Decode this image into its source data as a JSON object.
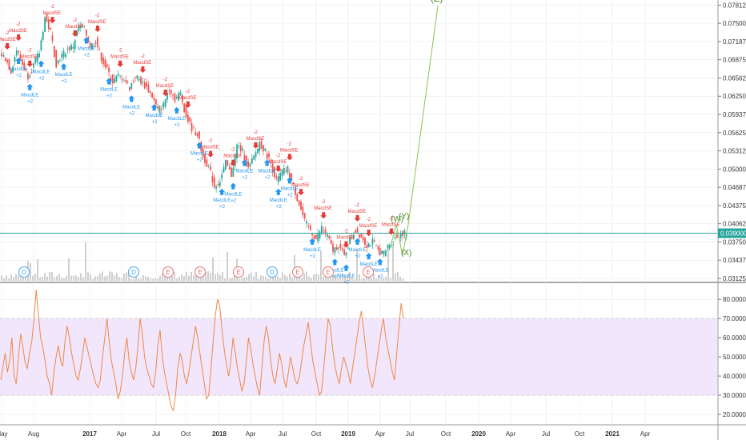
{
  "colors": {
    "candle_up": "#26a69a",
    "candle_down": "#ef5350",
    "volume": "#cfcfcf",
    "rsi_line": "#f0884a",
    "rsi_band": "#f1e6fb",
    "price_line": "#26a69a",
    "wave_line": "#8bc34a",
    "long_signal": "#2196f3",
    "short_signal": "#e53935",
    "axis_text": "#333333",
    "grid": "#e6e6e6",
    "earnings": "#e57373",
    "dividend": "#42a5f5"
  },
  "chart_data": [
    {
      "type": "candlestick",
      "y_ticks": [
        "0.078125",
        "0.075000",
        "0.071875",
        "0.068750",
        "0.065625",
        "0.062500",
        "0.059375",
        "0.056250",
        "0.053125",
        "0.050000",
        "0.046875",
        "0.043750",
        "0.040625",
        "0.037500",
        "0.034375",
        "0.031250"
      ],
      "ylim": [
        0.0307,
        0.079
      ],
      "current_price": "0.039000",
      "close_series_approx": [
        0.07,
        0.069,
        0.0668,
        0.0705,
        0.068,
        0.066,
        0.0678,
        0.07,
        0.076,
        0.0735,
        0.068,
        0.0695,
        0.0705,
        0.0712,
        0.0745,
        0.074,
        0.071,
        0.072,
        0.069,
        0.067,
        0.065,
        0.066,
        0.0655,
        0.064,
        0.066,
        0.065,
        0.064,
        0.0625,
        0.06,
        0.061,
        0.064,
        0.062,
        0.063,
        0.059,
        0.057,
        0.056,
        0.052,
        0.0505,
        0.047,
        0.048,
        0.051,
        0.049,
        0.054,
        0.053,
        0.05,
        0.052,
        0.0545,
        0.053,
        0.051,
        0.048,
        0.0495,
        0.05,
        0.047,
        0.044,
        0.041,
        0.0395,
        0.038,
        0.04,
        0.0385,
        0.036,
        0.037,
        0.035,
        0.038,
        0.0395,
        0.0385,
        0.037,
        0.0375,
        0.036,
        0.0355,
        0.0372,
        0.0382,
        0.039
      ],
      "strategy_labels": [
        "MacdSE",
        "MacdLE",
        "-2",
        "+2"
      ],
      "event_markers": [
        "D",
        "E"
      ],
      "wave_labels": [
        "(W)",
        "(X)",
        "(Y)",
        "(Z)"
      ],
      "x_ticks": [
        "May",
        "Aug",
        "2017",
        "Apr",
        "Jul",
        "Oct",
        "2018",
        "Apr",
        "Jul",
        "Oct",
        "2019",
        "Apr",
        "Jul",
        "Oct",
        "2020",
        "Apr",
        "Jul",
        "Oct",
        "2021",
        "Apr"
      ]
    },
    {
      "type": "line",
      "name": "RSI",
      "y_ticks": [
        "80.0000",
        "70.0000",
        "60.0000",
        "50.0000",
        "40.0000",
        "30.0000",
        "20.0000"
      ],
      "ylim": [
        15,
        88
      ],
      "band": [
        30,
        70
      ],
      "values_approx": [
        38,
        45,
        52,
        42,
        48,
        60,
        40,
        36,
        50,
        62,
        55,
        47,
        44,
        52,
        58,
        70,
        85,
        72,
        60,
        55,
        48,
        40,
        36,
        30,
        42,
        50,
        56,
        48,
        45,
        58,
        66,
        60,
        52,
        46,
        40,
        38,
        44,
        52,
        60,
        55,
        50,
        45,
        40,
        36,
        34,
        38,
        50,
        60,
        70,
        58,
        48,
        42,
        36,
        28,
        32,
        40,
        52,
        60,
        48,
        42,
        38,
        44,
        56,
        70,
        62,
        50,
        44,
        40,
        36,
        34,
        42,
        56,
        64,
        50,
        42,
        36,
        30,
        24,
        22,
        30,
        44,
        52,
        48,
        40,
        36,
        42,
        50,
        58,
        66,
        60,
        52,
        44,
        36,
        28,
        30,
        44,
        58,
        72,
        80,
        76,
        64,
        54,
        46,
        40,
        48,
        60,
        52,
        44,
        38,
        32,
        36,
        48,
        60,
        54,
        46,
        40,
        34,
        30,
        44,
        58,
        66,
        60,
        48,
        40,
        36,
        44,
        52,
        46,
        38,
        34,
        42,
        50,
        44,
        38,
        36,
        40,
        48,
        56,
        62,
        68,
        58,
        48,
        42,
        36,
        30,
        32,
        44,
        58,
        70,
        66,
        54,
        46,
        40,
        36,
        44,
        50,
        46,
        42,
        36,
        44,
        52,
        60,
        68,
        74,
        64,
        54,
        44,
        38,
        34,
        40,
        48,
        56,
        64,
        70,
        60,
        54,
        48,
        42,
        38,
        52,
        66,
        78,
        70
      ]
    }
  ]
}
